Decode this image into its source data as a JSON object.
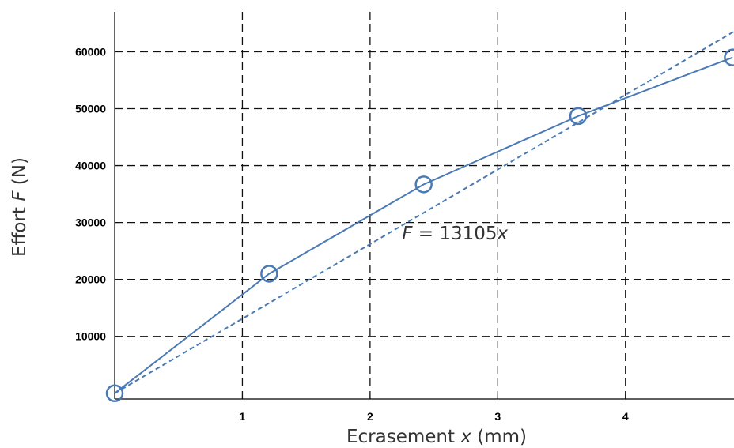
{
  "chart_data": {
    "type": "line",
    "title": "",
    "xlabel": {
      "prefix": "Ecrasement ",
      "var": "x",
      "suffix": " (mm)"
    },
    "ylabel": {
      "prefix": "Effort ",
      "var": "F",
      "suffix": " (N)"
    },
    "xlim": [
      0,
      4.85
    ],
    "ylim": [
      -1000,
      67000
    ],
    "x_ticks": [
      1,
      2,
      3,
      4
    ],
    "x_tick_labels": [
      "1",
      "2",
      "3",
      "4"
    ],
    "y_ticks": [
      10000,
      20000,
      30000,
      40000,
      50000,
      60000
    ],
    "y_tick_labels": [
      "10000",
      "20000",
      "30000",
      "40000",
      "50000",
      "60000"
    ],
    "grid": true,
    "series": [
      {
        "style": "solid-with-circle-markers",
        "color": "#4a7ab5",
        "x": [
          0,
          1.21,
          2.42,
          3.63,
          4.84
        ],
        "y": [
          0,
          21000,
          36700,
          48700,
          59000
        ]
      },
      {
        "style": "dashed",
        "color": "#4a7ab5",
        "x": [
          0,
          4.85
        ],
        "y": [
          0,
          63559
        ]
      }
    ],
    "annotation": {
      "lhs": "F",
      "rhs": " = 13105",
      "var": "x",
      "x": 2.25,
      "y": 27000
    }
  }
}
